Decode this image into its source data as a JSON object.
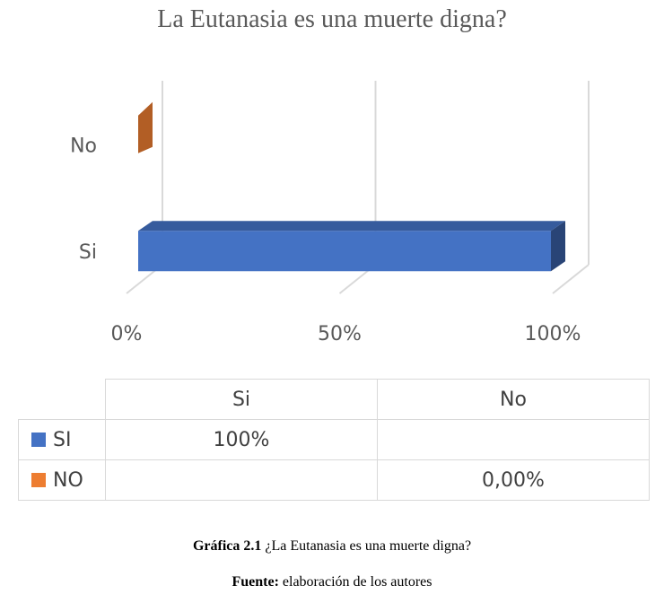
{
  "chart_data": {
    "type": "bar",
    "orientation": "horizontal",
    "three_d": true,
    "title": "La Eutanasia es una muerte digna?",
    "categories": [
      "Si",
      "No"
    ],
    "series": [
      {
        "name": "SI",
        "values": [
          100,
          null
        ],
        "color": "#4472C4"
      },
      {
        "name": "NO",
        "values": [
          null,
          0
        ],
        "color": "#ED7D31"
      }
    ],
    "xlim": [
      0,
      100
    ],
    "x_ticks": [
      "0%",
      "50%",
      "100%"
    ],
    "grid": true,
    "legend": "data-table"
  },
  "table": {
    "header": [
      "Si",
      "No"
    ],
    "rows": [
      {
        "label": "SI",
        "color": "#4472C4",
        "cells": [
          "100%",
          ""
        ]
      },
      {
        "label": "NO",
        "color": "#ED7D31",
        "cells": [
          "",
          "0,00%"
        ]
      }
    ]
  },
  "caption": {
    "label": "Gráfica 2.1",
    "text": "¿La Eutanasia es una muerte digna?"
  },
  "source": {
    "label": "Fuente:",
    "text": "elaboración de los autores"
  }
}
